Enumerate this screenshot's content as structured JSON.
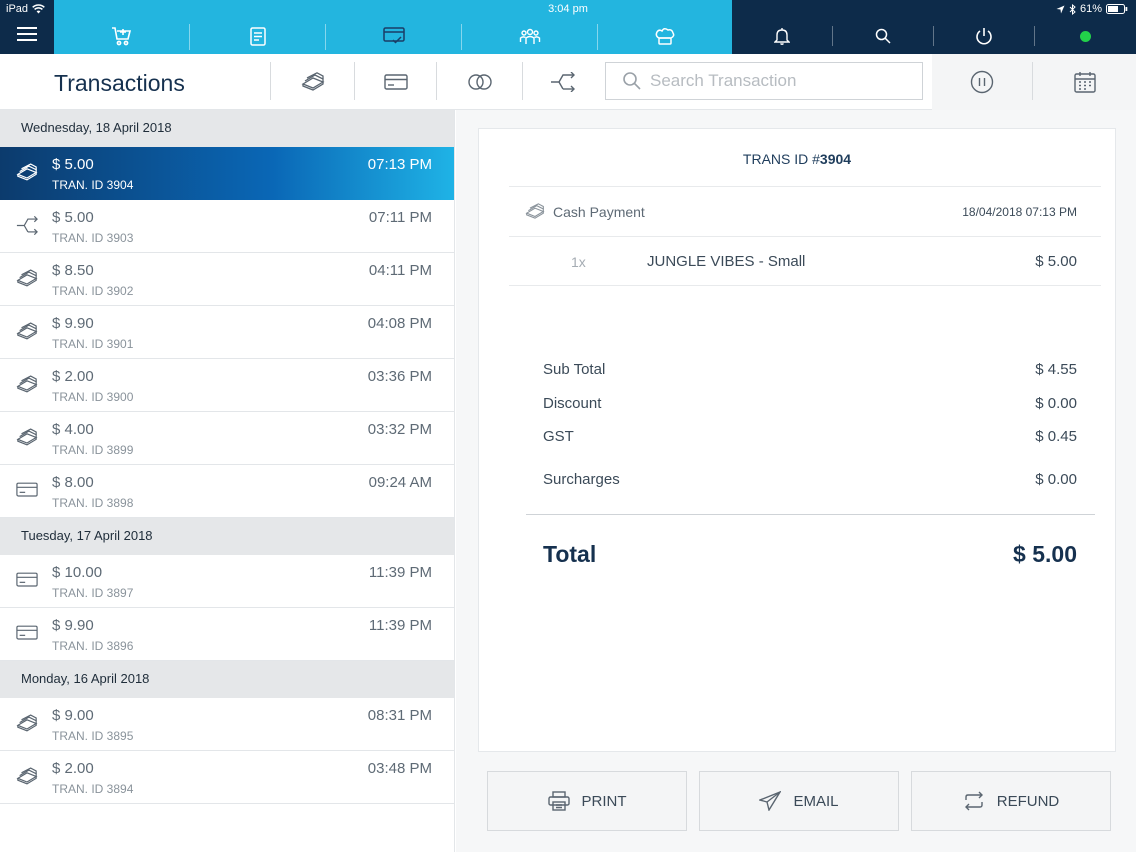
{
  "status_bar": {
    "device": "iPad",
    "time": "3:04 pm",
    "battery": "61%"
  },
  "nav": {
    "tabs": [
      {
        "icon": "cart-icon"
      },
      {
        "icon": "receipt-icon"
      },
      {
        "icon": "transactions-icon"
      },
      {
        "icon": "customers-icon"
      },
      {
        "icon": "chef-hat-icon"
      }
    ],
    "right_icons": [
      "bell-icon",
      "search-icon",
      "power-icon",
      "online-status-icon"
    ],
    "accent_color": "#23b5df",
    "dark_color": "#0d2b4a",
    "online_color": "#22d14a"
  },
  "header": {
    "title": "Transactions",
    "filters": [
      "cash-filter-icon",
      "card-filter-icon",
      "split-filter-icon",
      "transfer-filter-icon"
    ],
    "search_placeholder": "Search Transaction",
    "right_tools": [
      "pause-icon",
      "calendar-icon"
    ]
  },
  "transactions": {
    "groups": [
      {
        "date": "Wednesday, 18 April 2018",
        "items": [
          {
            "amount": "$ 5.00",
            "id": "TRAN. ID 3904",
            "time": "07:13 PM",
            "type": "cash",
            "selected": true
          },
          {
            "amount": "$ 5.00",
            "id": "TRAN. ID 3903",
            "time": "07:11 PM",
            "type": "transfer"
          },
          {
            "amount": "$ 8.50",
            "id": "TRAN. ID 3902",
            "time": "04:11 PM",
            "type": "cash"
          },
          {
            "amount": "$ 9.90",
            "id": "TRAN. ID 3901",
            "time": "04:08 PM",
            "type": "cash"
          },
          {
            "amount": "$ 2.00",
            "id": "TRAN. ID 3900",
            "time": "03:36 PM",
            "type": "cash"
          },
          {
            "amount": "$ 4.00",
            "id": "TRAN. ID 3899",
            "time": "03:32 PM",
            "type": "cash"
          },
          {
            "amount": "$ 8.00",
            "id": "TRAN. ID 3898",
            "time": "09:24 AM",
            "type": "card"
          }
        ]
      },
      {
        "date": "Tuesday, 17 April 2018",
        "items": [
          {
            "amount": "$ 10.00",
            "id": "TRAN. ID 3897",
            "time": "11:39 PM",
            "type": "card"
          },
          {
            "amount": "$ 9.90",
            "id": "TRAN. ID 3896",
            "time": "11:39 PM",
            "type": "card"
          }
        ]
      },
      {
        "date": "Monday, 16 April 2018",
        "items": [
          {
            "amount": "$ 9.00",
            "id": "TRAN. ID 3895",
            "time": "08:31 PM",
            "type": "cash"
          },
          {
            "amount": "$ 2.00",
            "id": "TRAN. ID 3894",
            "time": "03:48 PM",
            "type": "cash"
          }
        ]
      }
    ]
  },
  "detail": {
    "title_prefix": "TRANS ID #",
    "title_id": "3904",
    "payment_method": "Cash Payment",
    "payment_date": "18/04/2018 07:13 PM",
    "items": [
      {
        "qty": "1x",
        "name": "JUNGLE VIBES - Small",
        "price": "$ 5.00"
      }
    ],
    "summary": {
      "sub_total_label": "Sub Total",
      "sub_total": "$ 4.55",
      "discount_label": "Discount",
      "discount": "$ 0.00",
      "gst_label": "GST",
      "gst": "$ 0.45",
      "surcharges_label": "Surcharges",
      "surcharges": "$ 0.00"
    },
    "total_label": "Total",
    "total": "$ 5.00"
  },
  "actions": {
    "print_label": "PRINT",
    "email_label": "EMAIL",
    "refund_label": "REFUND"
  }
}
